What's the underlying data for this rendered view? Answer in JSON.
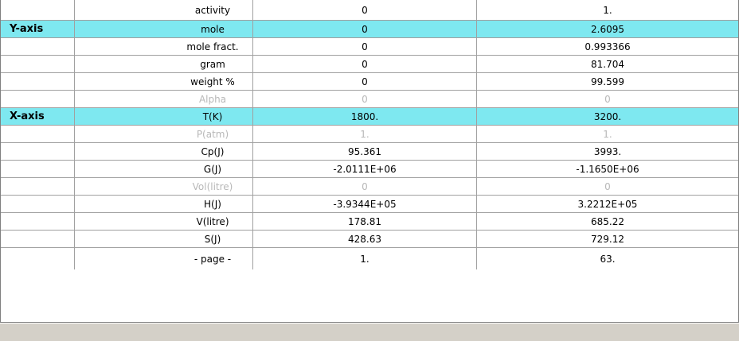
{
  "table": {
    "rows": [
      {
        "axis": "",
        "name": "activity",
        "min": "0",
        "max": "1.",
        "highlighted": false,
        "disabled": false
      },
      {
        "axis": "Y-axis",
        "name": "mole",
        "min": "0",
        "max": "2.6095",
        "highlighted": true,
        "disabled": false
      },
      {
        "axis": "",
        "name": "mole fract.",
        "min": "0",
        "max": "0.993366",
        "highlighted": false,
        "disabled": false
      },
      {
        "axis": "",
        "name": "gram",
        "min": "0",
        "max": "81.704",
        "highlighted": false,
        "disabled": false
      },
      {
        "axis": "",
        "name": "weight %",
        "min": "0",
        "max": "99.599",
        "highlighted": false,
        "disabled": false
      },
      {
        "axis": "",
        "name": "Alpha",
        "min": "0",
        "max": "0",
        "highlighted": false,
        "disabled": true
      },
      {
        "axis": "X-axis",
        "name": "T(K)",
        "min": "1800.",
        "max": "3200.",
        "highlighted": true,
        "disabled": false
      },
      {
        "axis": "",
        "name": "P(atm)",
        "min": "1.",
        "max": "1.",
        "highlighted": false,
        "disabled": true
      },
      {
        "axis": "",
        "name": "Cp(J)",
        "min": "95.361",
        "max": "3993.",
        "highlighted": false,
        "disabled": false
      },
      {
        "axis": "",
        "name": "G(J)",
        "min": "-2.0111E+06",
        "max": "-1.1650E+06",
        "highlighted": false,
        "disabled": false
      },
      {
        "axis": "",
        "name": "Vol(litre)",
        "min": "0",
        "max": "0",
        "highlighted": false,
        "disabled": true
      },
      {
        "axis": "",
        "name": "H(J)",
        "min": "-3.9344E+05",
        "max": "3.2212E+05",
        "highlighted": false,
        "disabled": false
      },
      {
        "axis": "",
        "name": "V(litre)",
        "min": "178.81",
        "max": "685.22",
        "highlighted": false,
        "disabled": false
      },
      {
        "axis": "",
        "name": "S(J)",
        "min": "428.63",
        "max": "729.12",
        "highlighted": false,
        "disabled": false
      },
      {
        "axis": "",
        "name": "- page -",
        "min": "1.",
        "max": "63.",
        "highlighted": false,
        "disabled": false
      }
    ]
  },
  "colors": {
    "highlight": "#7ee8f0",
    "disabled_text": "#b8b8b8",
    "grid_line": "#a0a0a0",
    "status_bar": "#d4d0c8"
  }
}
